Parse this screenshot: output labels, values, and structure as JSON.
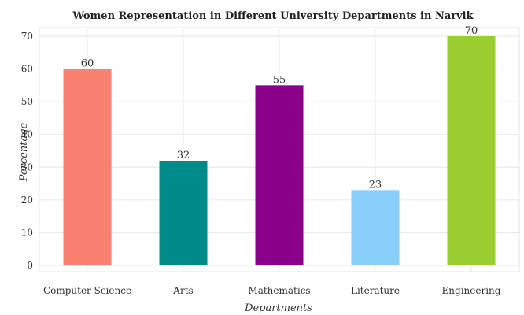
{
  "chart_data": {
    "type": "bar",
    "title": "Women Representation in Different University Departments in Narvik",
    "xlabel": "Departments",
    "ylabel": "Percentage",
    "categories": [
      "Computer Science",
      "Arts",
      "Mathematics",
      "Literature",
      "Engineering"
    ],
    "values": [
      60,
      32,
      55,
      23,
      70
    ],
    "colors": [
      "#fa8072",
      "#008b8b",
      "#8b008b",
      "#87cefa",
      "#9acd32"
    ],
    "ylim": [
      0,
      70
    ],
    "yticks": [
      0,
      10,
      20,
      30,
      40,
      50,
      60,
      70
    ],
    "grid": true,
    "legend": "none"
  }
}
